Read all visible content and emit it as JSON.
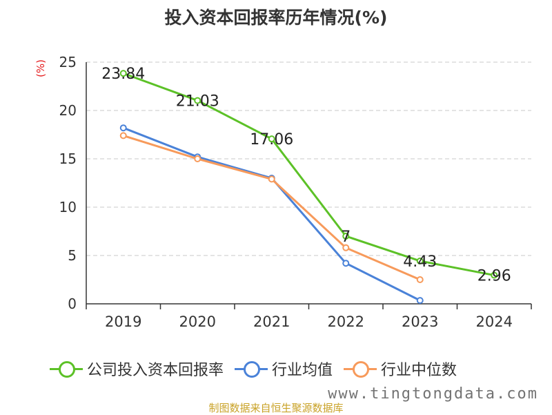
{
  "chart_data": {
    "type": "line",
    "title": "投入资本回报率历年情况(%)",
    "ylabel": "(%)",
    "categories": [
      "2019",
      "2020",
      "2021",
      "2022",
      "2023",
      "2024"
    ],
    "y_ticks": [
      "0",
      "5",
      "10",
      "15",
      "20",
      "25"
    ],
    "ylim": [
      0,
      25
    ],
    "grid": "horizontal-dashed",
    "legend_placement": "bottom",
    "series": [
      {
        "name": "公司投入资本回报率",
        "color": "#5cc127",
        "values": [
          23.84,
          21.03,
          17.06,
          7,
          4.43,
          2.96
        ],
        "labels": [
          "23.84",
          "21.03",
          "17.06",
          "7",
          "4.43",
          "2.96"
        ]
      },
      {
        "name": "行业均值",
        "color": "#4a82d8",
        "values": [
          18.2,
          15.2,
          13.0,
          4.2,
          0.35,
          null
        ]
      },
      {
        "name": "行业中位数",
        "color": "#f79a5b",
        "values": [
          17.4,
          15.0,
          12.9,
          5.8,
          2.5,
          null
        ]
      }
    ]
  },
  "footer": {
    "source": "制图数据来自恒生聚源数据库",
    "watermark": "www.tingtongdata.com"
  }
}
